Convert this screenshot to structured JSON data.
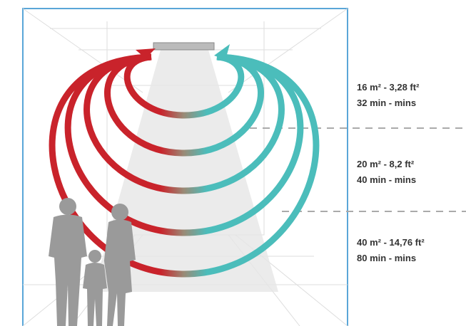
{
  "zones": [
    {
      "area": "16 m² - 3,28 ft²",
      "time": "32 min - mins"
    },
    {
      "area": "20 m² - 8,2 ft²",
      "time": "40 min - mins"
    },
    {
      "area": "40 m² - 14,76 ft²",
      "time": "80 min - mins"
    }
  ]
}
